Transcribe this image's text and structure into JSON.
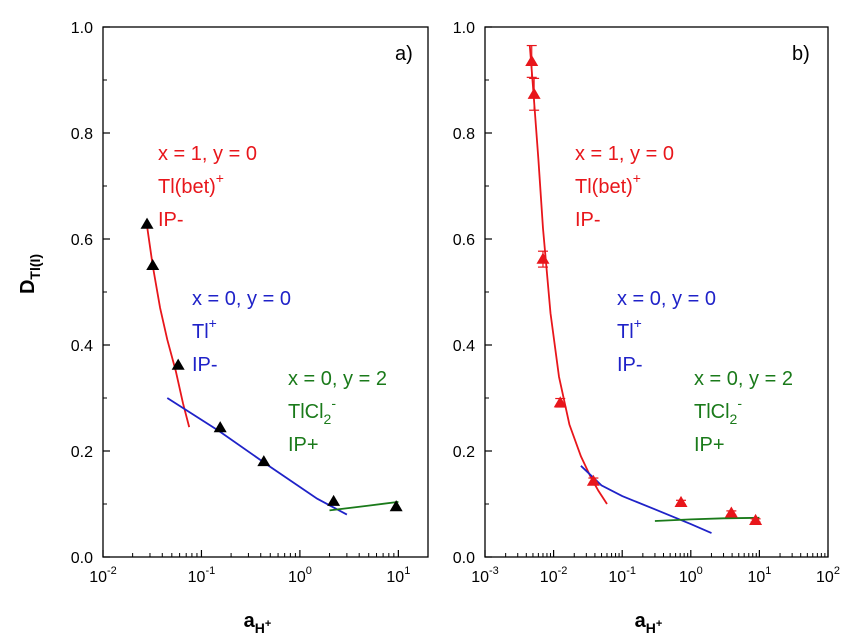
{
  "chart_data": [
    {
      "type": "scatter",
      "panel_label": "a)",
      "ylabel": "D",
      "ylabel_sub": "Tl(I)",
      "xlabel": "a",
      "xlabel_sub": "H",
      "xlabel_sub_sup": "+",
      "x_scale": "log",
      "xlim": [
        0.01,
        20
      ],
      "ylim": [
        0.0,
        1.0
      ],
      "x_ticks": [
        {
          "value": 0.01,
          "base": "10",
          "exp": "-2"
        },
        {
          "value": 0.1,
          "base": "10",
          "exp": "-1"
        },
        {
          "value": 1,
          "base": "10",
          "exp": "0"
        },
        {
          "value": 10,
          "base": "10",
          "exp": "1"
        }
      ],
      "y_ticks": [
        "0.0",
        "0.2",
        "0.4",
        "0.6",
        "0.8",
        "1.0"
      ],
      "y_tick_values": [
        0.0,
        0.2,
        0.4,
        0.6,
        0.8,
        1.0
      ],
      "points": {
        "color": "#000000",
        "x": [
          0.028,
          0.032,
          0.058,
          0.155,
          0.43,
          2.2,
          9.5
        ],
        "y": [
          0.628,
          0.55,
          0.362,
          0.244,
          0.18,
          0.105,
          0.095
        ]
      },
      "series": [
        {
          "color": "#e8161b",
          "x": [
            0.028,
            0.032,
            0.038,
            0.045,
            0.055,
            0.065,
            0.075
          ],
          "y": [
            0.625,
            0.55,
            0.47,
            0.41,
            0.35,
            0.29,
            0.245
          ]
        },
        {
          "color": "#1f22c8",
          "x": [
            0.045,
            0.15,
            0.5,
            1.5,
            3.0
          ],
          "y": [
            0.3,
            0.238,
            0.17,
            0.11,
            0.08
          ]
        },
        {
          "color": "#1a7a1a",
          "x": [
            2.0,
            5.0,
            10.0
          ],
          "y": [
            0.088,
            0.097,
            0.104
          ]
        }
      ],
      "annotations": [
        {
          "color": "#e8161b",
          "lines": [
            {
              "text": "x = 1, y = 0"
            },
            {
              "text": "Tl(bet)",
              "sup": "+"
            },
            {
              "text": "IP-"
            }
          ]
        },
        {
          "color": "#1f22c8",
          "lines": [
            {
              "text": "x = 0, y = 0"
            },
            {
              "text": "Tl",
              "sup": "+"
            },
            {
              "text": "IP-"
            }
          ]
        },
        {
          "color": "#1a7a1a",
          "lines": [
            {
              "text": "x = 0, y = 2"
            },
            {
              "text": "TlCl",
              "sub": "2",
              "sup": "-"
            },
            {
              "text": "IP+"
            }
          ]
        }
      ]
    },
    {
      "type": "scatter",
      "panel_label": "b)",
      "xlabel": "a",
      "xlabel_sub": "H",
      "xlabel_sub_sup": "+",
      "x_scale": "log",
      "xlim": [
        0.001,
        100
      ],
      "ylim": [
        0.0,
        1.0
      ],
      "x_ticks": [
        {
          "value": 0.001,
          "base": "10",
          "exp": "-3"
        },
        {
          "value": 0.01,
          "base": "10",
          "exp": "-2"
        },
        {
          "value": 0.1,
          "base": "10",
          "exp": "-1"
        },
        {
          "value": 1,
          "base": "10",
          "exp": "0"
        },
        {
          "value": 10,
          "base": "10",
          "exp": "1"
        },
        {
          "value": 100,
          "base": "10",
          "exp": "2"
        }
      ],
      "y_ticks": [
        "0.0",
        "0.2",
        "0.4",
        "0.6",
        "0.8",
        "1.0"
      ],
      "y_tick_values": [
        0.0,
        0.2,
        0.4,
        0.6,
        0.8,
        1.0
      ],
      "points": {
        "color": "#e8161b",
        "x": [
          0.0048,
          0.0052,
          0.007,
          0.0125,
          0.038,
          0.72,
          3.9,
          8.8
        ],
        "y": [
          0.935,
          0.873,
          0.562,
          0.291,
          0.143,
          0.103,
          0.083,
          0.069
        ],
        "err": [
          0.03,
          0.03,
          0.015,
          0.008,
          0.006,
          0.004,
          0.004,
          0.003
        ]
      },
      "series": [
        {
          "color": "#e8161b",
          "x": [
            0.0045,
            0.005,
            0.006,
            0.007,
            0.009,
            0.012,
            0.017,
            0.025,
            0.035,
            0.045,
            0.06
          ],
          "y": [
            0.965,
            0.89,
            0.75,
            0.62,
            0.46,
            0.34,
            0.25,
            0.19,
            0.15,
            0.125,
            0.1
          ]
        },
        {
          "color": "#1f22c8",
          "x": [
            0.025,
            0.05,
            0.1,
            0.3,
            1.0,
            2.0
          ],
          "y": [
            0.172,
            0.135,
            0.115,
            0.09,
            0.062,
            0.045
          ]
        },
        {
          "color": "#1a7a1a",
          "x": [
            0.3,
            1.0,
            3.0,
            10.0
          ],
          "y": [
            0.068,
            0.071,
            0.073,
            0.074
          ]
        }
      ],
      "annotations": [
        {
          "color": "#e8161b",
          "lines": [
            {
              "text": "x = 1, y = 0"
            },
            {
              "text": "Tl(bet)",
              "sup": "+"
            },
            {
              "text": "IP-"
            }
          ]
        },
        {
          "color": "#1f22c8",
          "lines": [
            {
              "text": "x = 0, y = 0"
            },
            {
              "text": "Tl",
              "sup": "+"
            },
            {
              "text": "IP-"
            }
          ]
        },
        {
          "color": "#1a7a1a",
          "lines": [
            {
              "text": "x = 0, y = 2"
            },
            {
              "text": "TlCl",
              "sub": "2",
              "sup": "-"
            },
            {
              "text": "IP+"
            }
          ]
        }
      ]
    }
  ]
}
